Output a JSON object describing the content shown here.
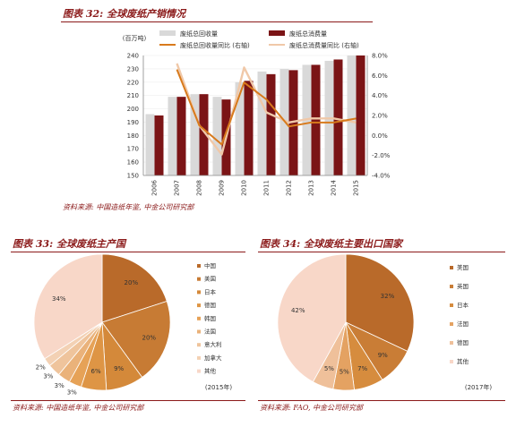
{
  "figure32": {
    "title": "图表 32:  全球废纸产销情况",
    "source": "资料来源: 中国造纸年鉴, 中金公司研究部",
    "unit_label": "(百万吨)",
    "legend": [
      "废纸总回收量",
      "废纸总消费量",
      "废纸总回收量同比 (右轴)",
      "废纸总消费量同比 (右轴)"
    ]
  },
  "figure33": {
    "title": "图表 33:  全球废纸主产国",
    "source": "资料来源: 中国造纸年鉴, 中金公司研究部",
    "year_label": "(2015年)",
    "legend": [
      "中国",
      "美国",
      "日本",
      "德国",
      "韩国",
      "法国",
      "意大利",
      "加拿大",
      "其他"
    ]
  },
  "figure34": {
    "title": "图表 34:  全球废纸主要出口国家",
    "source": "资料来源: FAO, 中金公司研究部",
    "year_label": "(2017年)",
    "legend": [
      "美国",
      "英国",
      "日本",
      "法国",
      "德国",
      "其他"
    ]
  },
  "colors": {
    "recovered_bar": "#d9d9d9",
    "consumed_bar": "#7b1416",
    "recovered_line": "#d87a1c",
    "consumed_line": "#f0c8a8",
    "title_red": "#8b1a1a",
    "pie33": [
      "#b96a2a",
      "#c77b34",
      "#d4893a",
      "#de9545",
      "#e6a257",
      "#eab27a",
      "#efc49c",
      "#f3d1b4",
      "#f8d7c8"
    ],
    "pie34": [
      "#b96a2a",
      "#c97d36",
      "#d68c3e",
      "#e4a262",
      "#efc09a",
      "#f8d7c8"
    ]
  },
  "chart_data": [
    {
      "type": "bar",
      "categories": [
        "2006",
        "2007",
        "2008",
        "2009",
        "2010",
        "2011",
        "2012",
        "2013",
        "2014",
        "2015"
      ],
      "series": [
        {
          "name": "废纸总回收量",
          "type": "bar",
          "axis": "left",
          "values": [
            196,
            209,
            211,
            209,
            220,
            228,
            230,
            233,
            236,
            240
          ]
        },
        {
          "name": "废纸总消费量",
          "type": "bar",
          "axis": "left",
          "values": [
            195,
            209,
            211,
            207,
            221,
            226,
            229,
            233,
            237,
            240
          ]
        },
        {
          "name": "废纸总回收量同比 (右轴)",
          "type": "line",
          "axis": "right",
          "values": [
            null,
            6.6,
            1.0,
            -0.9,
            5.3,
            3.6,
            0.9,
            1.3,
            1.3,
            1.7
          ]
        },
        {
          "name": "废纸总消费量同比 (右轴)",
          "type": "line",
          "axis": "right",
          "values": [
            null,
            7.2,
            1.0,
            -1.9,
            6.8,
            2.3,
            1.3,
            1.7,
            1.7,
            1.3
          ]
        }
      ],
      "ylim": [
        150,
        240
      ],
      "y_ticks": [
        150,
        160,
        170,
        180,
        190,
        200,
        210,
        220,
        230,
        240
      ],
      "y2lim": [
        -4.0,
        8.0
      ],
      "y2_ticks": [
        "-4.0%",
        "-2.0%",
        "0.0%",
        "2.0%",
        "4.0%",
        "6.0%",
        "8.0%"
      ],
      "legend_position": "top"
    },
    {
      "type": "pie",
      "labels": [
        "中国",
        "美国",
        "日本",
        "德国",
        "韩国",
        "法国",
        "意大利",
        "加拿大",
        "其他"
      ],
      "values": [
        20,
        20,
        9,
        6,
        3,
        3,
        3,
        2,
        34
      ],
      "data_labels": [
        "20%",
        "20%",
        "9%",
        "6%",
        "3%",
        "3%",
        "3%",
        "2%",
        "34%"
      ],
      "legend_position": "right"
    },
    {
      "type": "pie",
      "labels": [
        "美国",
        "英国",
        "日本",
        "法国",
        "德国",
        "其他"
      ],
      "values": [
        32,
        9,
        7,
        5,
        5,
        42
      ],
      "data_labels": [
        "32%",
        "9%",
        "7%",
        "5%",
        "5%",
        "42%"
      ],
      "legend_position": "right"
    }
  ]
}
